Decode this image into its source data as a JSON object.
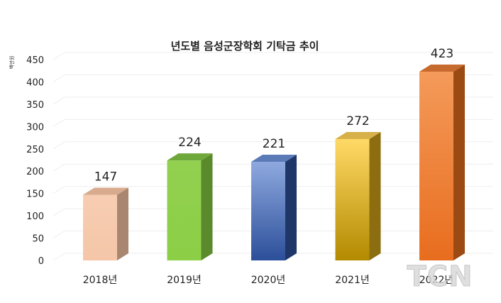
{
  "chart_data": {
    "type": "bar",
    "title": "년도별 음성군장학회 기탁금 추이",
    "ylabel": "백만원",
    "xlabel": "",
    "categories": [
      "2018년",
      "2019년",
      "2020년",
      "2021년",
      "2022년"
    ],
    "values": [
      147,
      224,
      221,
      272,
      423
    ],
    "ylim": [
      0,
      450
    ],
    "yticks": [
      0,
      50,
      100,
      150,
      200,
      250,
      300,
      350,
      400,
      450
    ],
    "grid": true,
    "legend": "none",
    "style": "3d-bars",
    "bar_colors": [
      {
        "front_top": "#f7cdb2",
        "front_bottom": "#f5c6a8",
        "side": "#a88670",
        "top": "#d8ab8e"
      },
      {
        "front_top": "#92d050",
        "front_bottom": "#8ccf46",
        "side": "#5b8a2c",
        "top": "#6fa83a"
      },
      {
        "front_top": "#8fa9df",
        "front_bottom": "#2c4f9a",
        "side": "#1f3768",
        "top": "#5a7ab8"
      },
      {
        "front_top": "#ffd966",
        "front_bottom": "#b38a00",
        "side": "#8c6d10",
        "top": "#d7b04a"
      },
      {
        "front_top": "#f49a5a",
        "front_bottom": "#e86d1e",
        "side": "#9c4a14",
        "top": "#c76a2e"
      }
    ]
  },
  "watermark": "TCN"
}
